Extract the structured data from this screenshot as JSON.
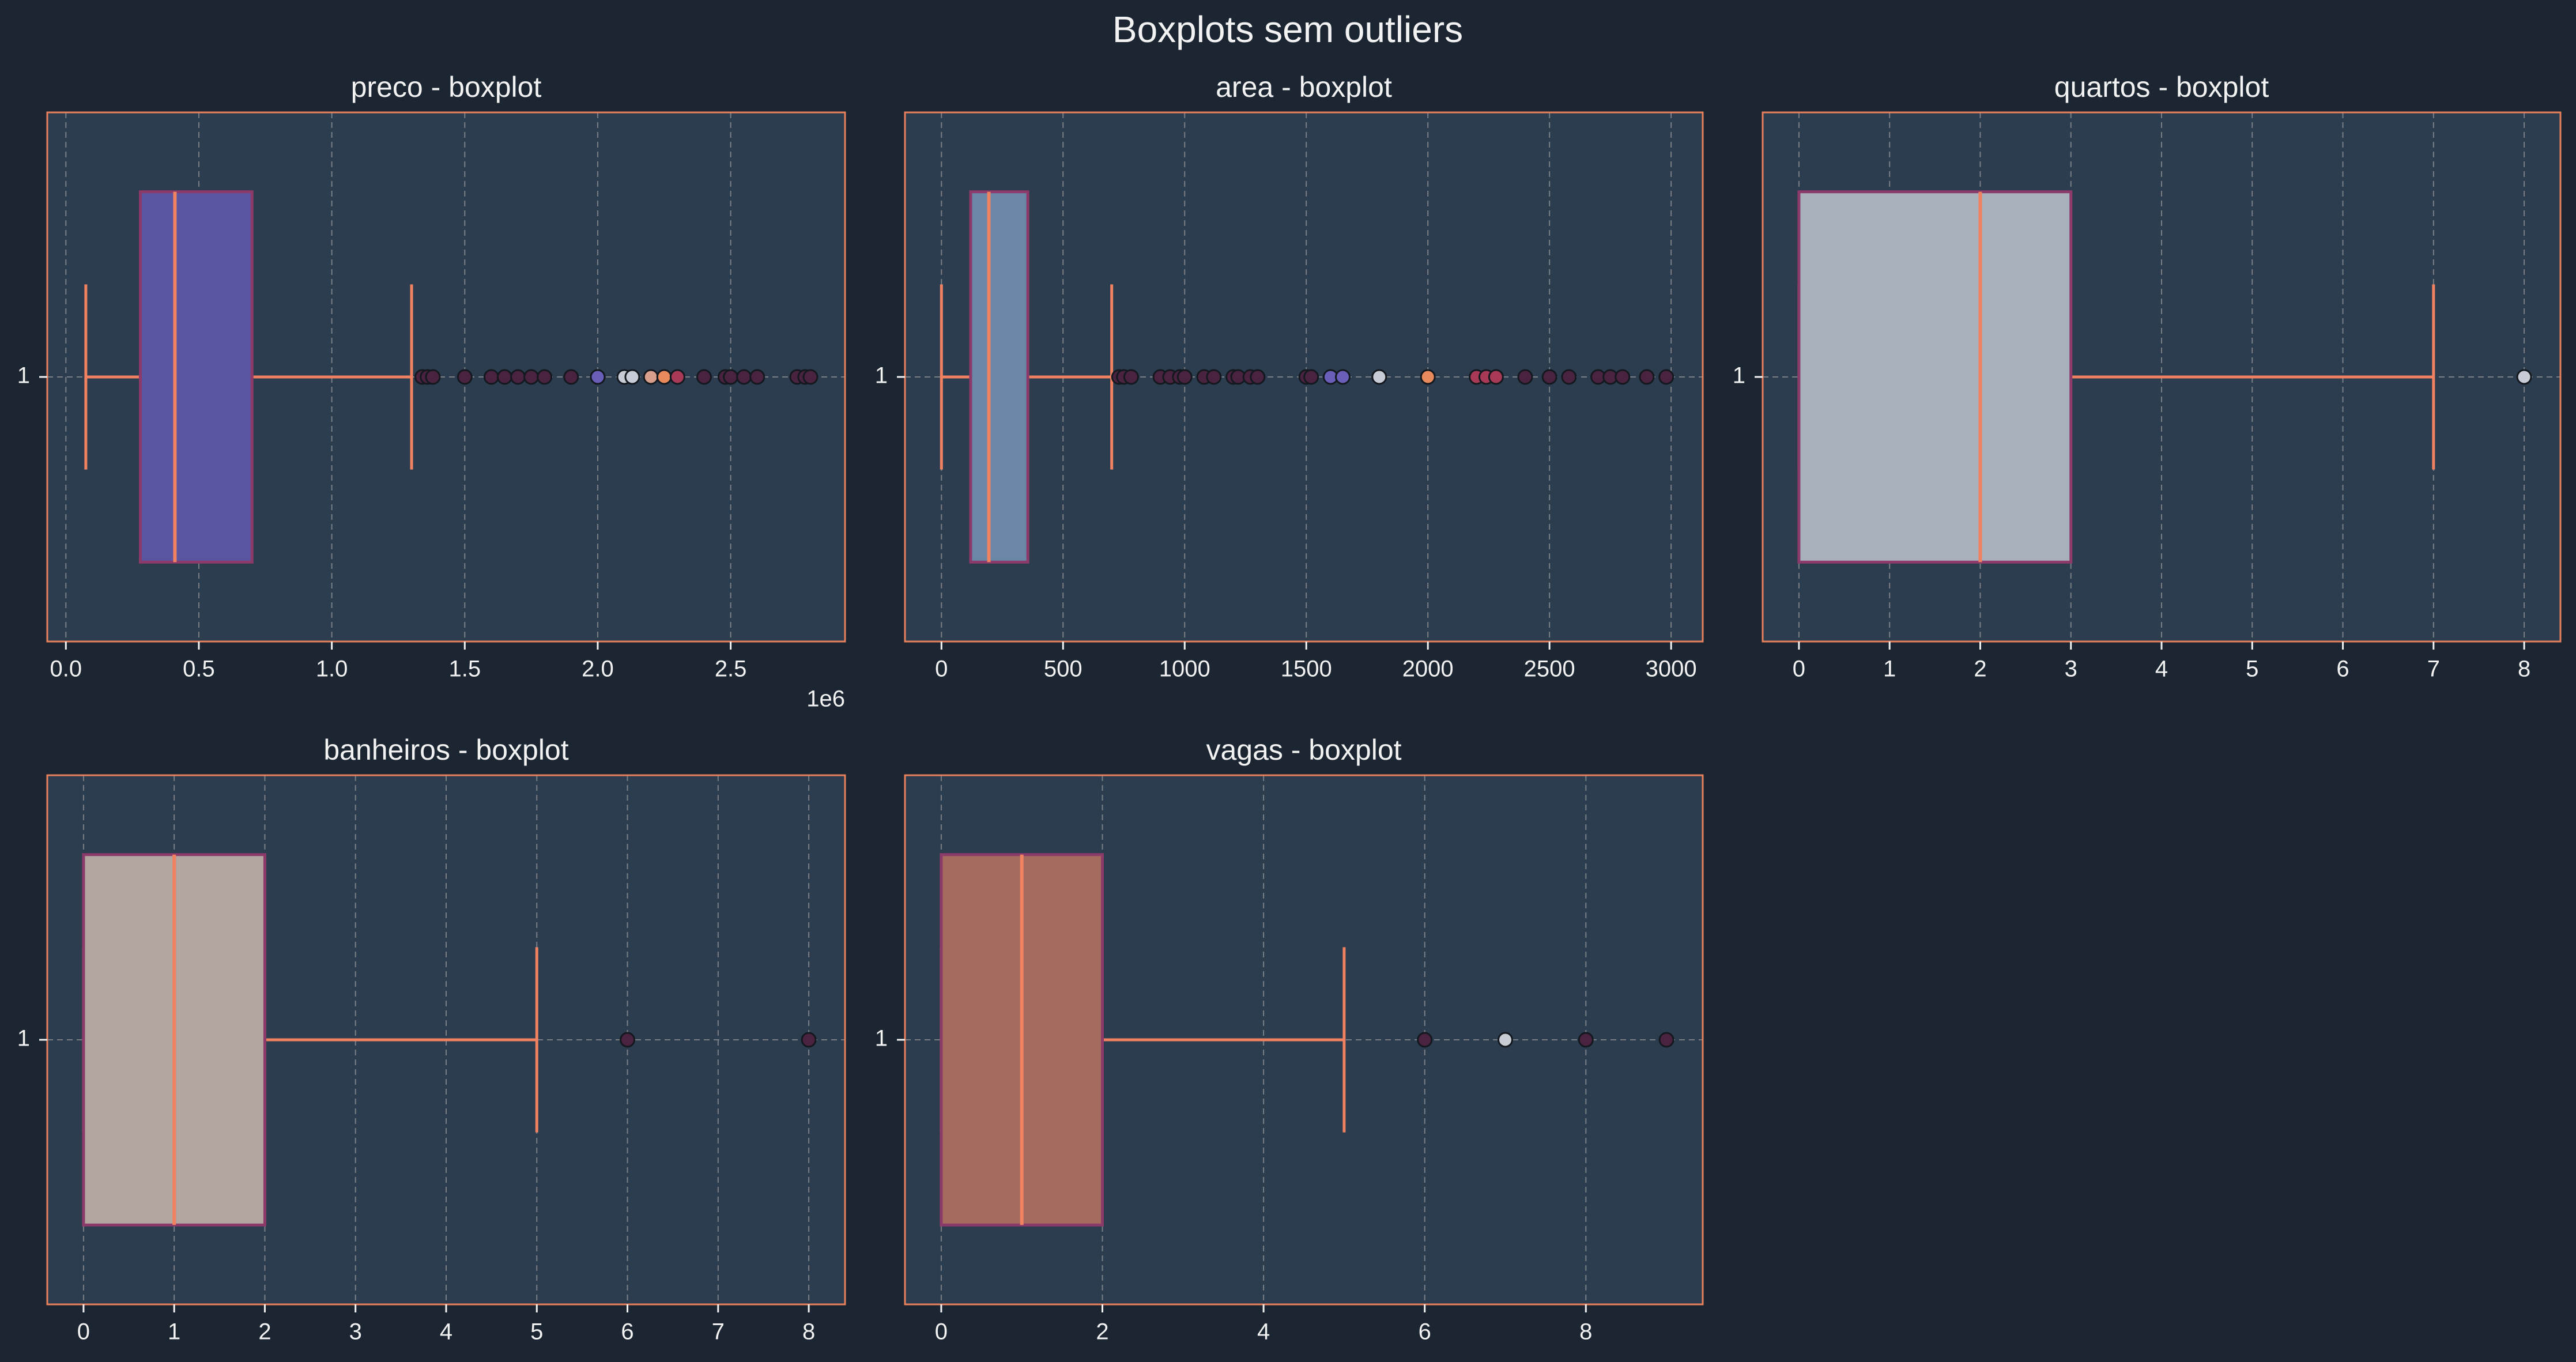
{
  "figure": {
    "title": "Boxplots sem outliers"
  },
  "colors": {
    "background": "#1c2632",
    "panel": "#2c3d50",
    "frame": "#e8805c",
    "grid": "#7a7f86",
    "text": "#f2f2f2",
    "whisker": "#f08262",
    "median": "#f08262",
    "box_edge": "#8c3a6a"
  },
  "chart_data": [
    {
      "type": "boxplot",
      "orientation": "horizontal",
      "title": "preco - boxplot",
      "ytick": "1",
      "xlim": [
        -0.07,
        2.93
      ],
      "xticks": [
        0,
        0.5,
        1.0,
        1.5,
        2.0,
        2.5
      ],
      "xtick_labels": [
        "0.0",
        "0.5",
        "1.0",
        "1.5",
        "2.0",
        "2.5"
      ],
      "offset_label": "1e6",
      "whislo": 0.075,
      "q1": 0.28,
      "med": 0.41,
      "q3": 0.7,
      "whishi": 1.3,
      "box_color": "#5a55a0",
      "fliers": [
        {
          "x": 1.34,
          "color": "#4a2340"
        },
        {
          "x": 1.36,
          "color": "#4a2340"
        },
        {
          "x": 1.38,
          "color": "#4a2340"
        },
        {
          "x": 1.5,
          "color": "#4a2340"
        },
        {
          "x": 1.6,
          "color": "#4a2340"
        },
        {
          "x": 1.65,
          "color": "#4a2340"
        },
        {
          "x": 1.7,
          "color": "#4a2340"
        },
        {
          "x": 1.75,
          "color": "#4a2340"
        },
        {
          "x": 1.8,
          "color": "#4a2340"
        },
        {
          "x": 1.9,
          "color": "#4a2340"
        },
        {
          "x": 2.0,
          "color": "#6a5fb8"
        },
        {
          "x": 2.1,
          "color": "#c8ccd4"
        },
        {
          "x": 2.13,
          "color": "#c8ccd4"
        },
        {
          "x": 2.2,
          "color": "#d8a08c"
        },
        {
          "x": 2.25,
          "color": "#e88a5c"
        },
        {
          "x": 2.3,
          "color": "#a83a58"
        },
        {
          "x": 2.4,
          "color": "#4a2340"
        },
        {
          "x": 2.48,
          "color": "#4a2340"
        },
        {
          "x": 2.5,
          "color": "#4a2340"
        },
        {
          "x": 2.55,
          "color": "#4a2340"
        },
        {
          "x": 2.6,
          "color": "#4a2340"
        },
        {
          "x": 2.75,
          "color": "#4a2340"
        },
        {
          "x": 2.78,
          "color": "#4a2340"
        },
        {
          "x": 2.8,
          "color": "#4a2340"
        }
      ]
    },
    {
      "type": "boxplot",
      "orientation": "horizontal",
      "title": "area - boxplot",
      "ytick": "1",
      "xlim": [
        -150,
        3130
      ],
      "xticks": [
        0,
        500,
        1000,
        1500,
        2000,
        2500,
        3000
      ],
      "xtick_labels": [
        "0",
        "500",
        "1000",
        "1500",
        "2000",
        "2500",
        "3000"
      ],
      "offset_label": "",
      "whislo": 0,
      "q1": 120,
      "med": 195,
      "q3": 355,
      "whishi": 700,
      "box_color": "#6a87a8",
      "fliers": [
        {
          "x": 730,
          "color": "#4a2340"
        },
        {
          "x": 750,
          "color": "#4a2340"
        },
        {
          "x": 780,
          "color": "#4a2340"
        },
        {
          "x": 900,
          "color": "#4a2340"
        },
        {
          "x": 940,
          "color": "#4a2340"
        },
        {
          "x": 980,
          "color": "#4a2340"
        },
        {
          "x": 1000,
          "color": "#4a2340"
        },
        {
          "x": 1080,
          "color": "#4a2340"
        },
        {
          "x": 1120,
          "color": "#4a2340"
        },
        {
          "x": 1200,
          "color": "#4a2340"
        },
        {
          "x": 1220,
          "color": "#4a2340"
        },
        {
          "x": 1270,
          "color": "#4a2340"
        },
        {
          "x": 1300,
          "color": "#4a2340"
        },
        {
          "x": 1500,
          "color": "#4a2340"
        },
        {
          "x": 1520,
          "color": "#4a2340"
        },
        {
          "x": 1600,
          "color": "#6a5fb8"
        },
        {
          "x": 1650,
          "color": "#6a5fb8"
        },
        {
          "x": 1800,
          "color": "#c8ccd4"
        },
        {
          "x": 2000,
          "color": "#e88a5c"
        },
        {
          "x": 2200,
          "color": "#a83a58"
        },
        {
          "x": 2240,
          "color": "#a83a58"
        },
        {
          "x": 2280,
          "color": "#a83a58"
        },
        {
          "x": 2400,
          "color": "#4a2340"
        },
        {
          "x": 2500,
          "color": "#4a2340"
        },
        {
          "x": 2580,
          "color": "#4a2340"
        },
        {
          "x": 2700,
          "color": "#4a2340"
        },
        {
          "x": 2750,
          "color": "#4a2340"
        },
        {
          "x": 2800,
          "color": "#4a2340"
        },
        {
          "x": 2900,
          "color": "#4a2340"
        },
        {
          "x": 2980,
          "color": "#4a2340"
        }
      ]
    },
    {
      "type": "boxplot",
      "orientation": "horizontal",
      "title": "quartos - boxplot",
      "ytick": "1",
      "xlim": [
        -0.4,
        8.4
      ],
      "xticks": [
        0,
        1,
        2,
        3,
        4,
        5,
        6,
        7,
        8
      ],
      "xtick_labels": [
        "0",
        "1",
        "2",
        "3",
        "4",
        "5",
        "6",
        "7",
        "8"
      ],
      "offset_label": "",
      "whislo": 0,
      "q1": 0,
      "med": 2,
      "q3": 3,
      "whishi": 7,
      "box_color": "#a8b0bc",
      "fliers": [
        {
          "x": 8,
          "color": "#c8ccd4"
        }
      ]
    },
    {
      "type": "boxplot",
      "orientation": "horizontal",
      "title": "banheiros - boxplot",
      "ytick": "1",
      "xlim": [
        -0.4,
        8.4
      ],
      "xticks": [
        0,
        1,
        2,
        3,
        4,
        5,
        6,
        7,
        8
      ],
      "xtick_labels": [
        "0",
        "1",
        "2",
        "3",
        "4",
        "5",
        "6",
        "7",
        "8"
      ],
      "offset_label": "",
      "whislo": 0,
      "q1": 0,
      "med": 1,
      "q3": 2,
      "whishi": 5,
      "box_color": "#b3a5a0",
      "fliers": [
        {
          "x": 6,
          "color": "#4a2340"
        },
        {
          "x": 8,
          "color": "#4a2340"
        }
      ]
    },
    {
      "type": "boxplot",
      "orientation": "horizontal",
      "title": "vagas - boxplot",
      "ytick": "1",
      "xlim": [
        -0.45,
        9.45
      ],
      "xticks": [
        0,
        2,
        4,
        6,
        8
      ],
      "xtick_labels": [
        "0",
        "2",
        "4",
        "6",
        "8"
      ],
      "offset_label": "",
      "whislo": 0,
      "q1": 0,
      "med": 1,
      "q3": 2,
      "whishi": 5,
      "box_color": "#a46b5e",
      "fliers": [
        {
          "x": 6,
          "color": "#4a2340"
        },
        {
          "x": 7,
          "color": "#c8ccd4"
        },
        {
          "x": 8,
          "color": "#4a2340"
        },
        {
          "x": 9,
          "color": "#4a2340"
        }
      ]
    }
  ]
}
